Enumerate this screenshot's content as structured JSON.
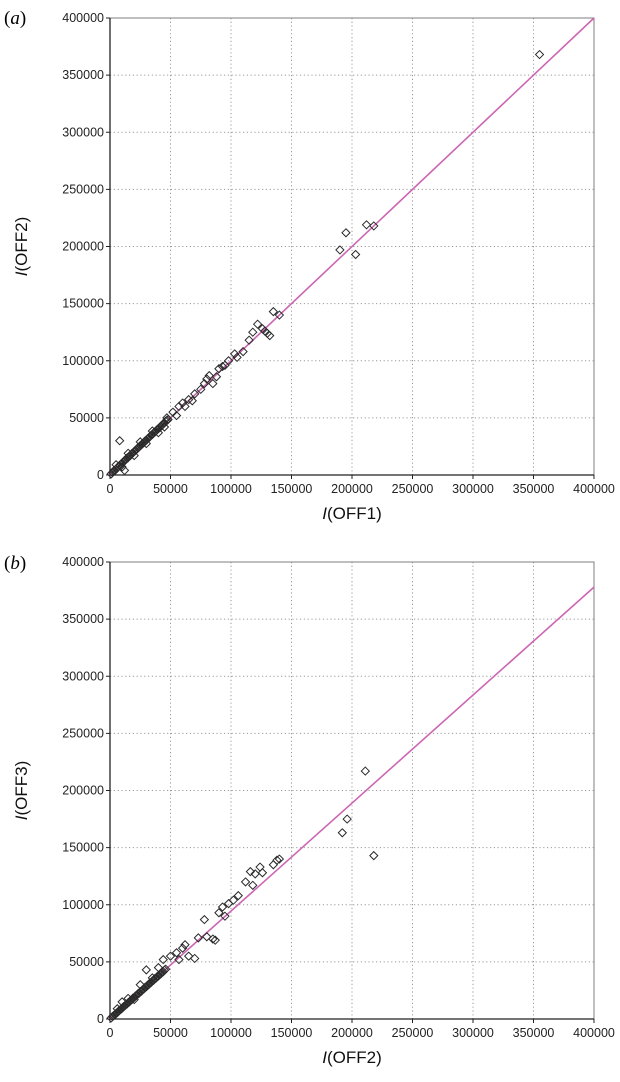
{
  "chart_data": [
    {
      "type": "scatter",
      "panel_label": "a",
      "title": "",
      "xlabel_italic": "I",
      "xlabel_rest": "(OFF1)",
      "ylabel_italic": "I",
      "ylabel_rest": "(OFF2)",
      "xlim": [
        0,
        400000
      ],
      "ylim": [
        0,
        400000
      ],
      "x_ticks": [
        "0",
        "50000",
        "100000",
        "150000",
        "200000",
        "250000",
        "300000",
        "350000",
        "400000"
      ],
      "y_ticks": [
        "0",
        "50000",
        "100000",
        "150000",
        "200000",
        "250000",
        "300000",
        "350000",
        "400000"
      ],
      "grid": true,
      "marker": "diamond-open",
      "fit_line": {
        "color": "#cc66b3",
        "x": [
          0,
          400000
        ],
        "y": [
          0,
          400000
        ]
      },
      "points": [
        [
          1000,
          1000
        ],
        [
          2000,
          2200
        ],
        [
          3000,
          3500
        ],
        [
          4000,
          3800
        ],
        [
          5000,
          5300
        ],
        [
          6000,
          6200
        ],
        [
          7000,
          7500
        ],
        [
          8000,
          8200
        ],
        [
          9000,
          9600
        ],
        [
          10000,
          10500
        ],
        [
          11000,
          11200
        ],
        [
          12000,
          12600
        ],
        [
          13000,
          13400
        ],
        [
          14000,
          14800
        ],
        [
          15000,
          15200
        ],
        [
          16000,
          16500
        ],
        [
          17000,
          17300
        ],
        [
          18000,
          18800
        ],
        [
          19000,
          19400
        ],
        [
          20000,
          20500
        ],
        [
          21000,
          21600
        ],
        [
          22000,
          22300
        ],
        [
          23000,
          23700
        ],
        [
          24000,
          24500
        ],
        [
          25000,
          25800
        ],
        [
          26000,
          26400
        ],
        [
          27000,
          27600
        ],
        [
          28000,
          28500
        ],
        [
          29000,
          29800
        ],
        [
          30000,
          30400
        ],
        [
          31000,
          31700
        ],
        [
          32000,
          32500
        ],
        [
          33000,
          33600
        ],
        [
          34000,
          34800
        ],
        [
          35000,
          35500
        ],
        [
          36000,
          36700
        ],
        [
          37000,
          37600
        ],
        [
          38000,
          38500
        ],
        [
          39000,
          39800
        ],
        [
          40000,
          40700
        ],
        [
          41000,
          41400
        ],
        [
          42000,
          42800
        ],
        [
          43000,
          43600
        ],
        [
          44000,
          44900
        ],
        [
          45000,
          45500
        ],
        [
          46000,
          47000
        ],
        [
          47000,
          47800
        ],
        [
          48000,
          48500
        ],
        [
          5000,
          9000
        ],
        [
          10000,
          7000
        ],
        [
          15000,
          19000
        ],
        [
          20000,
          17000
        ],
        [
          25000,
          29000
        ],
        [
          30000,
          27500
        ],
        [
          35000,
          38500
        ],
        [
          40000,
          37000
        ],
        [
          8000,
          30000
        ],
        [
          12000,
          4000
        ],
        [
          45000,
          42000
        ],
        [
          47000,
          50000
        ],
        [
          52000,
          55000
        ],
        [
          55000,
          52000
        ],
        [
          57000,
          60000
        ],
        [
          60000,
          63000
        ],
        [
          62000,
          60000
        ],
        [
          65000,
          66000
        ],
        [
          68000,
          65000
        ],
        [
          70000,
          71000
        ],
        [
          75000,
          75000
        ],
        [
          78000,
          80000
        ],
        [
          80000,
          84000
        ],
        [
          82000,
          87000
        ],
        [
          85000,
          80000
        ],
        [
          88000,
          86000
        ],
        [
          90000,
          93000
        ],
        [
          93000,
          95000
        ],
        [
          95000,
          96000
        ],
        [
          98000,
          100000
        ],
        [
          103000,
          106000
        ],
        [
          105000,
          103000
        ],
        [
          110000,
          108000
        ],
        [
          115000,
          118000
        ],
        [
          118000,
          125000
        ],
        [
          122000,
          132000
        ],
        [
          126000,
          128000
        ],
        [
          128000,
          126000
        ],
        [
          130000,
          124000
        ],
        [
          132000,
          122000
        ],
        [
          135000,
          143000
        ],
        [
          140000,
          140000
        ],
        [
          190000,
          197000
        ],
        [
          195000,
          212000
        ],
        [
          203000,
          193000
        ],
        [
          212000,
          219000
        ],
        [
          218000,
          218000
        ],
        [
          355000,
          368000
        ]
      ]
    },
    {
      "type": "scatter",
      "panel_label": "b",
      "title": "",
      "xlabel_italic": "I",
      "xlabel_rest": "(OFF2)",
      "ylabel_italic": "I",
      "ylabel_rest": "(OFF3)",
      "xlim": [
        0,
        400000
      ],
      "ylim": [
        0,
        400000
      ],
      "x_ticks": [
        "0",
        "50000",
        "100000",
        "150000",
        "200000",
        "250000",
        "300000",
        "350000",
        "400000"
      ],
      "y_ticks": [
        "0",
        "50000",
        "100000",
        "150000",
        "200000",
        "250000",
        "300000",
        "350000",
        "400000"
      ],
      "grid": true,
      "marker": "diamond-open",
      "fit_line": {
        "color": "#cc66b3",
        "x": [
          0,
          400000
        ],
        "y": [
          0,
          378000
        ]
      },
      "points": [
        [
          1000,
          900
        ],
        [
          2000,
          2100
        ],
        [
          3000,
          3000
        ],
        [
          4000,
          3600
        ],
        [
          5000,
          4900
        ],
        [
          6000,
          5600
        ],
        [
          7000,
          6800
        ],
        [
          8000,
          7700
        ],
        [
          9000,
          8500
        ],
        [
          10000,
          9400
        ],
        [
          11000,
          10600
        ],
        [
          12000,
          11300
        ],
        [
          13000,
          12400
        ],
        [
          14000,
          13100
        ],
        [
          15000,
          14300
        ],
        [
          16000,
          15000
        ],
        [
          17000,
          16200
        ],
        [
          18000,
          17000
        ],
        [
          19000,
          18300
        ],
        [
          20000,
          18800
        ],
        [
          21000,
          20100
        ],
        [
          22000,
          20700
        ],
        [
          23000,
          22000
        ],
        [
          24000,
          22500
        ],
        [
          25000,
          23900
        ],
        [
          26000,
          24400
        ],
        [
          27000,
          25700
        ],
        [
          28000,
          26300
        ],
        [
          29000,
          27700
        ],
        [
          30000,
          28200
        ],
        [
          31000,
          29500
        ],
        [
          32000,
          30100
        ],
        [
          33000,
          31500
        ],
        [
          34000,
          32000
        ],
        [
          35000,
          33300
        ],
        [
          36000,
          33900
        ],
        [
          37000,
          35300
        ],
        [
          38000,
          35700
        ],
        [
          39000,
          37100
        ],
        [
          40000,
          37600
        ],
        [
          41000,
          39000
        ],
        [
          42000,
          39500
        ],
        [
          43000,
          41000
        ],
        [
          44000,
          41400
        ],
        [
          45000,
          42800
        ],
        [
          46000,
          43600
        ],
        [
          6000,
          9000
        ],
        [
          10000,
          15000
        ],
        [
          15000,
          18000
        ],
        [
          20000,
          17000
        ],
        [
          25000,
          30000
        ],
        [
          30000,
          43000
        ],
        [
          35000,
          36000
        ],
        [
          40000,
          45000
        ],
        [
          44000,
          52000
        ],
        [
          50000,
          55000
        ],
        [
          55000,
          58000
        ],
        [
          57000,
          52000
        ],
        [
          60000,
          62000
        ],
        [
          62000,
          65000
        ],
        [
          65000,
          55000
        ],
        [
          70000,
          53000
        ],
        [
          73000,
          71000
        ],
        [
          78000,
          87000
        ],
        [
          80000,
          72000
        ],
        [
          85000,
          70000
        ],
        [
          87000,
          69000
        ],
        [
          90000,
          93000
        ],
        [
          93000,
          98000
        ],
        [
          95000,
          90000
        ],
        [
          98000,
          101000
        ],
        [
          102000,
          104000
        ],
        [
          106000,
          108000
        ],
        [
          112000,
          120000
        ],
        [
          116000,
          129000
        ],
        [
          118000,
          117000
        ],
        [
          120000,
          127000
        ],
        [
          124000,
          133000
        ],
        [
          126000,
          128000
        ],
        [
          135000,
          135000
        ],
        [
          138000,
          139000
        ],
        [
          140000,
          140000
        ],
        [
          192000,
          163000
        ],
        [
          196000,
          175000
        ],
        [
          211000,
          217000
        ],
        [
          218000,
          143000
        ]
      ]
    }
  ]
}
